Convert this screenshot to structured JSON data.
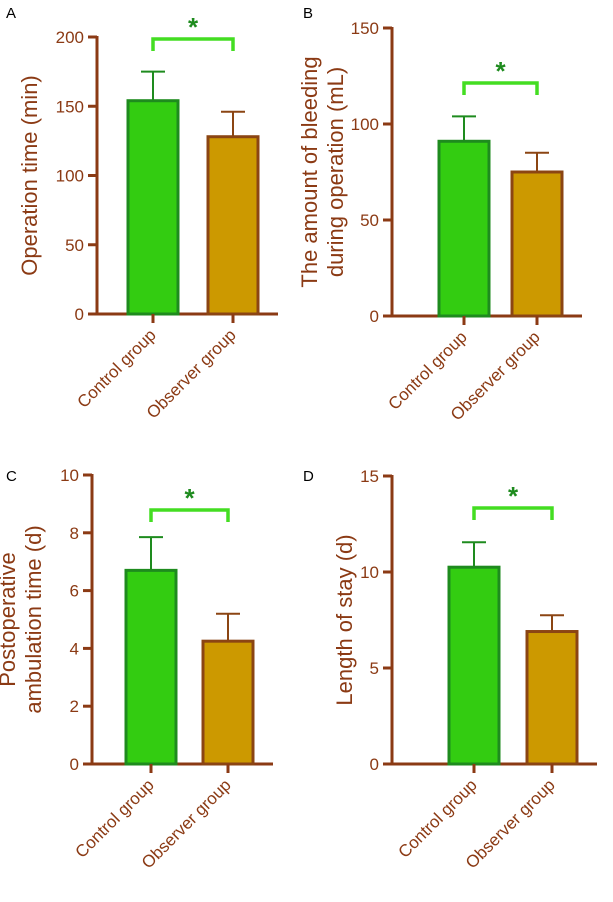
{
  "colors": {
    "axis": "#8B3A14",
    "control_fill": "#33CC11",
    "control_edge": "#1E8B1E",
    "observer_fill": "#CC9900",
    "observer_edge": "#8B4513",
    "bracket": "#44DD22",
    "star": "#1E8B1E"
  },
  "chart_data": [
    {
      "type": "bar",
      "panel": "A",
      "categories": [
        "Control group",
        "Observer group"
      ],
      "values": [
        154,
        128
      ],
      "errors": [
        21,
        18
      ],
      "ylabel_lines": [
        "Operation time (min)"
      ],
      "ylim": [
        0,
        200
      ],
      "yticks": [
        0,
        50,
        100,
        150,
        200
      ],
      "significance": "*"
    },
    {
      "type": "bar",
      "panel": "B",
      "categories": [
        "Control group",
        "Observer group"
      ],
      "values": [
        91,
        75
      ],
      "errors": [
        13,
        10
      ],
      "ylabel_lines": [
        "The amount of bleeding",
        "during operation (mL)"
      ],
      "ylim": [
        0,
        150
      ],
      "yticks": [
        0,
        50,
        100,
        150
      ],
      "significance": "*"
    },
    {
      "type": "bar",
      "panel": "C",
      "categories": [
        "Control group",
        "Observer group"
      ],
      "values": [
        6.7,
        4.25
      ],
      "errors": [
        1.15,
        0.95
      ],
      "ylabel_lines": [
        "Postoperative",
        "ambulation time (d)"
      ],
      "ylim": [
        0,
        10
      ],
      "yticks": [
        0,
        2,
        4,
        6,
        8,
        10
      ],
      "significance": "*"
    },
    {
      "type": "bar",
      "panel": "D",
      "categories": [
        "Control group",
        "Observer group"
      ],
      "values": [
        10.25,
        6.9
      ],
      "errors": [
        1.3,
        0.85
      ],
      "ylabel_lines": [
        "Length of stay (d)"
      ],
      "ylim": [
        0,
        15
      ],
      "yticks": [
        0,
        5,
        10,
        15
      ],
      "significance": "*"
    }
  ]
}
